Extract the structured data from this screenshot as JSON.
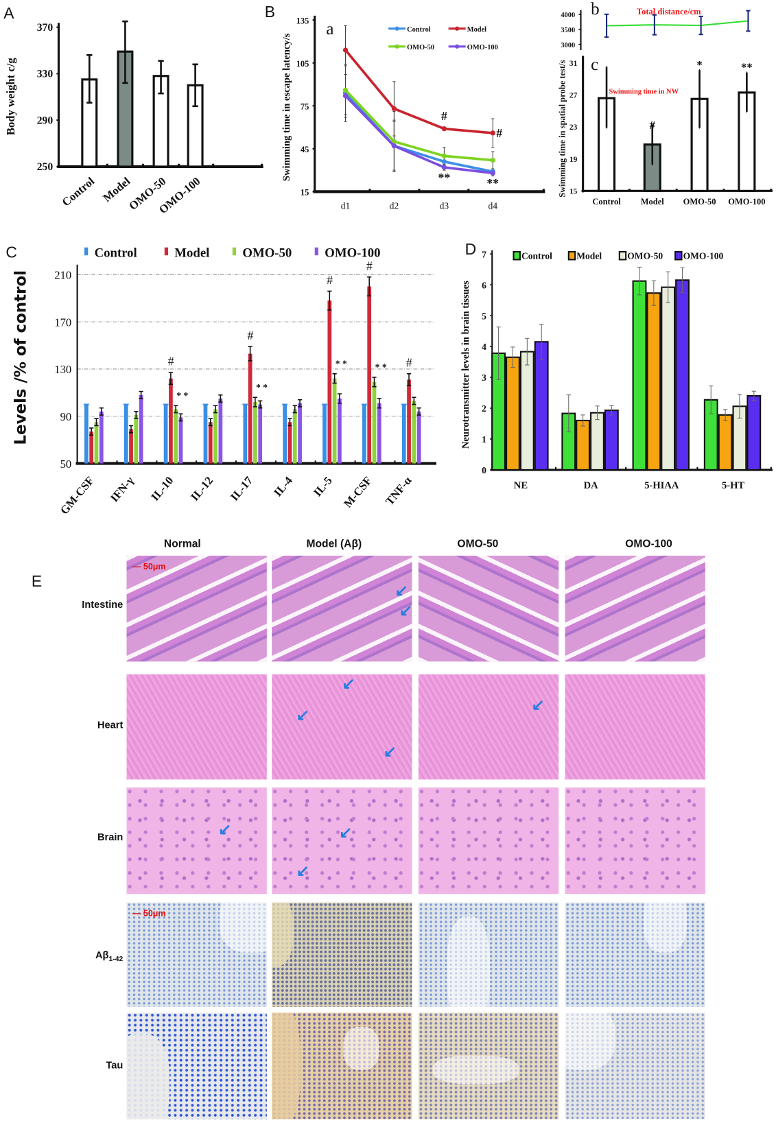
{
  "panel_labels": {
    "A": "A",
    "B": "B",
    "b": "b",
    "a": "a",
    "c": "c",
    "C": "C",
    "D": "D",
    "E": "E"
  },
  "chart_data": [
    {
      "id": "A",
      "type": "bar",
      "title": "",
      "xlabel": "",
      "ylabel": "Body weight c/g",
      "categories": [
        "Control",
        "Model",
        "OMO-50",
        "OMO-100"
      ],
      "ylim": [
        250,
        370
      ],
      "yticks": [
        250,
        290,
        330,
        370
      ],
      "series": [
        {
          "name": "Body weight",
          "values": [
            325,
            349,
            328,
            320
          ],
          "err_low": [
            305,
            322,
            313,
            302
          ],
          "err_high": [
            346,
            375,
            341,
            338
          ]
        }
      ],
      "colors": [
        "#ffffff",
        "#7b8c86",
        "#ffffff",
        "#ffffff"
      ]
    },
    {
      "id": "B-a",
      "type": "line",
      "ylabel": "Swimming time in escape latency/s",
      "x": [
        "d1",
        "d2",
        "d3",
        "d4"
      ],
      "ylim": [
        15,
        135
      ],
      "yticks": [
        15,
        45,
        75,
        105,
        135
      ],
      "series": [
        {
          "name": "Control",
          "color": "#3d8fe8",
          "values": [
            84,
            47,
            36,
            29
          ],
          "err": [
            20,
            18,
            0,
            0
          ]
        },
        {
          "name": "Model",
          "color": "#c8242f",
          "values": [
            114,
            73,
            59,
            56
          ],
          "err": [
            17,
            19,
            1,
            10
          ]
        },
        {
          "name": "OMO-50",
          "color": "#7ed321",
          "values": [
            86,
            50,
            40,
            37
          ],
          "err": [
            17,
            21,
            6,
            6
          ]
        },
        {
          "name": "OMO-100",
          "color": "#7b4fe0",
          "values": [
            82,
            47,
            32,
            28
          ],
          "err": [
            15,
            17,
            2,
            2
          ]
        }
      ],
      "annotations": [
        {
          "x": "d3",
          "series": "Model",
          "text": "#"
        },
        {
          "x": "d4",
          "series": "Model",
          "text": "#"
        },
        {
          "x": "d3",
          "series": "OMO-100",
          "text": "**"
        },
        {
          "x": "d4",
          "series": "OMO-100",
          "text": "**"
        }
      ]
    },
    {
      "id": "B-b",
      "type": "line",
      "title": "Total distance/cm",
      "x": [
        "Control",
        "Model",
        "OMO-50",
        "OMO-100"
      ],
      "ylim": [
        3000,
        4000
      ],
      "yticks": [
        3000,
        3500,
        4000
      ],
      "series": [
        {
          "name": "Total distance",
          "color": "#33dd33",
          "values": [
            3620,
            3650,
            3630,
            3780
          ],
          "err": [
            380,
            330,
            300,
            340
          ]
        }
      ]
    },
    {
      "id": "B-c",
      "type": "bar",
      "title": "Swimming time in NW",
      "ylabel": "Swimming time in spatial probe test/s",
      "categories": [
        "Control",
        "Model",
        "OMO-50",
        "OMO-100"
      ],
      "ylim": [
        15,
        31
      ],
      "yticks": [
        15,
        19,
        23,
        27,
        31
      ],
      "series": [
        {
          "name": "Swimming time in NW",
          "values": [
            26.6,
            20.8,
            26.5,
            27.3
          ],
          "err_low": [
            22.9,
            18.3,
            22.9,
            24.9
          ],
          "err_high": [
            30.5,
            23.3,
            30.1,
            29.8
          ]
        }
      ],
      "colors": [
        "#ffffff",
        "#7b8c86",
        "#ffffff",
        "#ffffff"
      ],
      "annotations": [
        "",
        "#",
        "*",
        "**"
      ]
    },
    {
      "id": "C",
      "type": "bar",
      "ylabel": "Levels /% of control",
      "categories": [
        "GM-CSF",
        "IFN-γ",
        "IL-10",
        "IL-12",
        "IL-17",
        "IL-4",
        "IL-5",
        "M-CSF",
        "TNF-α"
      ],
      "ylim": [
        50,
        210
      ],
      "yticks": [
        50,
        90,
        130,
        170,
        210
      ],
      "grid": true,
      "series": [
        {
          "name": "Control",
          "color": "#3a8ee6",
          "values": [
            100,
            100,
            100,
            100,
            100,
            100,
            100,
            100,
            100
          ],
          "err": [
            0,
            0,
            0,
            0,
            0,
            0,
            0,
            0,
            0
          ]
        },
        {
          "name": "Model",
          "color": "#d1283a",
          "values": [
            77,
            79,
            122,
            85,
            143,
            85,
            188,
            200,
            121
          ],
          "err": [
            3,
            3,
            5,
            3,
            6,
            3,
            8,
            8,
            5
          ]
        },
        {
          "name": "OMO-50",
          "color": "#8fd43a",
          "values": [
            85,
            91,
            96,
            96,
            102,
            96,
            122,
            119,
            103
          ],
          "err": [
            3,
            3,
            3,
            3,
            4,
            3,
            4,
            4,
            3
          ]
        },
        {
          "name": "OMO-100",
          "color": "#8a55e6",
          "values": [
            94,
            108,
            89,
            105,
            100,
            101,
            105,
            101,
            94
          ],
          "err": [
            3,
            3,
            3,
            3,
            3,
            3,
            4,
            4,
            3
          ]
        }
      ],
      "annotations": [
        {
          "category": "IL-10",
          "model": "#",
          "treat": "* *"
        },
        {
          "category": "IL-17",
          "model": "#",
          "treat": "* *"
        },
        {
          "category": "IL-5",
          "model": "#",
          "treat": "* *"
        },
        {
          "category": "M-CSF",
          "model": "#",
          "treat": "* *"
        },
        {
          "category": "TNF-α",
          "model": "#",
          "treat": ""
        }
      ],
      "legend": "top"
    },
    {
      "id": "D",
      "type": "bar",
      "ylabel": "Neurotransmitter levels in brain tissues",
      "categories": [
        "NE",
        "DA",
        "5-HIAA",
        "5-HT"
      ],
      "ylim": [
        0,
        7
      ],
      "yticks": [
        0,
        1,
        2,
        3,
        4,
        5,
        6,
        7
      ],
      "series": [
        {
          "name": "Control",
          "color": "#3fe03a",
          "values": [
            3.78,
            1.83,
            6.12,
            2.27
          ],
          "err": [
            0.85,
            0.6,
            0.45,
            0.45
          ]
        },
        {
          "name": "Model",
          "color": "#f6a410",
          "values": [
            3.65,
            1.6,
            5.73,
            1.78
          ],
          "err": [
            0.33,
            0.18,
            0.4,
            0.18
          ]
        },
        {
          "name": "OMO-50",
          "color": "#e8eedb",
          "values": [
            3.83,
            1.85,
            5.92,
            2.06
          ],
          "err": [
            0.43,
            0.22,
            0.5,
            0.38
          ]
        },
        {
          "name": "OMO-100",
          "color": "#5a2ef0",
          "values": [
            4.15,
            1.93,
            6.15,
            2.4
          ],
          "err": [
            0.57,
            0.15,
            0.4,
            0.15
          ]
        }
      ],
      "legend": "top"
    }
  ],
  "histology": {
    "columns": [
      "Normal",
      "Model (Aβ)",
      "OMO-50",
      "OMO-100"
    ],
    "rows": [
      {
        "label": "Intestine"
      },
      {
        "label": "Heart"
      },
      {
        "label": "Brain"
      },
      {
        "label": "Aβ",
        "sub": "1-42"
      },
      {
        "label": "Tau"
      }
    ],
    "scale_bar": "50μm"
  }
}
